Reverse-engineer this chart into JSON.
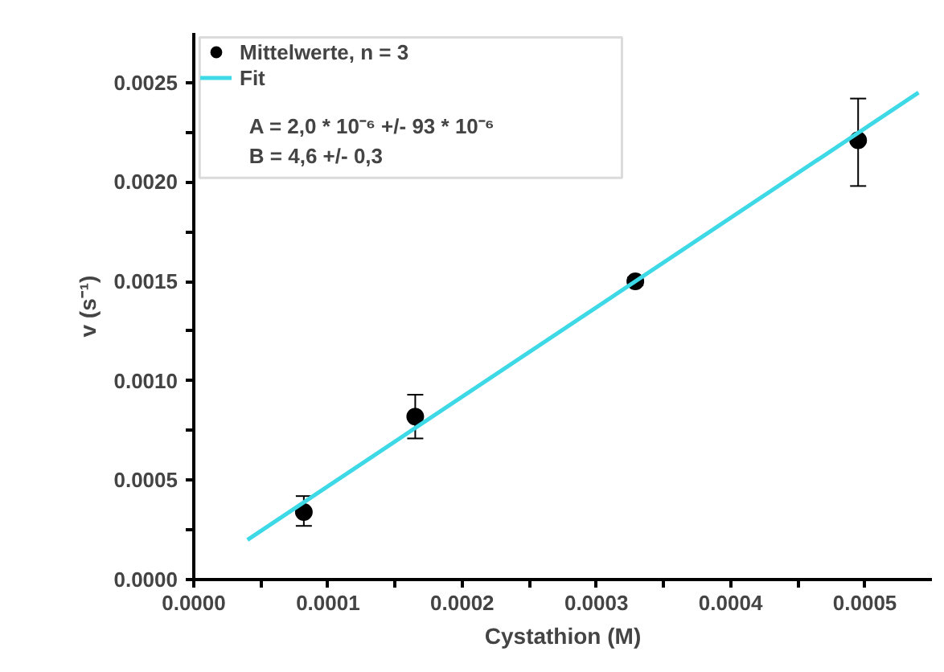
{
  "chart_data": {
    "type": "scatter",
    "xlabel": "Cystathion (M)",
    "ylabel": "v (s⁻¹)",
    "xlim": [
      0,
      0.00055
    ],
    "ylim": [
      0,
      0.00275
    ],
    "xticks": [
      {
        "value": 0,
        "label": "0.0000"
      },
      {
        "value": 5e-05,
        "label": null
      },
      {
        "value": 0.0001,
        "label": "0.0001"
      },
      {
        "value": 0.00015,
        "label": null
      },
      {
        "value": 0.0002,
        "label": "0.0002"
      },
      {
        "value": 0.00025,
        "label": null
      },
      {
        "value": 0.0003,
        "label": "0.0003"
      },
      {
        "value": 0.00035,
        "label": null
      },
      {
        "value": 0.0004,
        "label": "0.0004"
      },
      {
        "value": 0.00045,
        "label": null
      },
      {
        "value": 0.0005,
        "label": "0.0005"
      }
    ],
    "yticks": [
      {
        "value": 0,
        "label": "0.0000"
      },
      {
        "value": 0.00025,
        "label": null
      },
      {
        "value": 0.0005,
        "label": "0.0005"
      },
      {
        "value": 0.00075,
        "label": null
      },
      {
        "value": 0.001,
        "label": "0.0010"
      },
      {
        "value": 0.00125,
        "label": null
      },
      {
        "value": 0.0015,
        "label": "0.0015"
      },
      {
        "value": 0.00175,
        "label": null
      },
      {
        "value": 0.002,
        "label": "0.0020"
      },
      {
        "value": 0.00225,
        "label": null
      },
      {
        "value": 0.0025,
        "label": "0.0025"
      }
    ],
    "grid": false,
    "legend": "top left",
    "annotations": [
      "A = 2,0 * 10⁻⁶ +/- 93 * 10⁻⁶",
      "B = 4,6 +/- 0,3"
    ],
    "series": [
      {
        "name": "Mittelwerte, n = 3",
        "color": "#000000",
        "marker": "circle",
        "x": [
          8.2e-05,
          0.000165,
          0.000329,
          0.000495
        ],
        "values": [
          0.00034,
          0.00082,
          0.0015,
          0.00221
        ],
        "errors": [
          [
            0.00027,
            0.00042
          ],
          [
            0.00071,
            0.00093
          ],
          [
            0.00148,
            0.00152
          ],
          [
            0.00198,
            0.00242
          ]
        ]
      },
      {
        "name": "Fit",
        "type": "line",
        "color": "#3dd9e6",
        "line_style": "solid",
        "x": [
          4e-05,
          0.00054
        ],
        "values": [
          0.0002,
          0.00245
        ]
      }
    ]
  }
}
